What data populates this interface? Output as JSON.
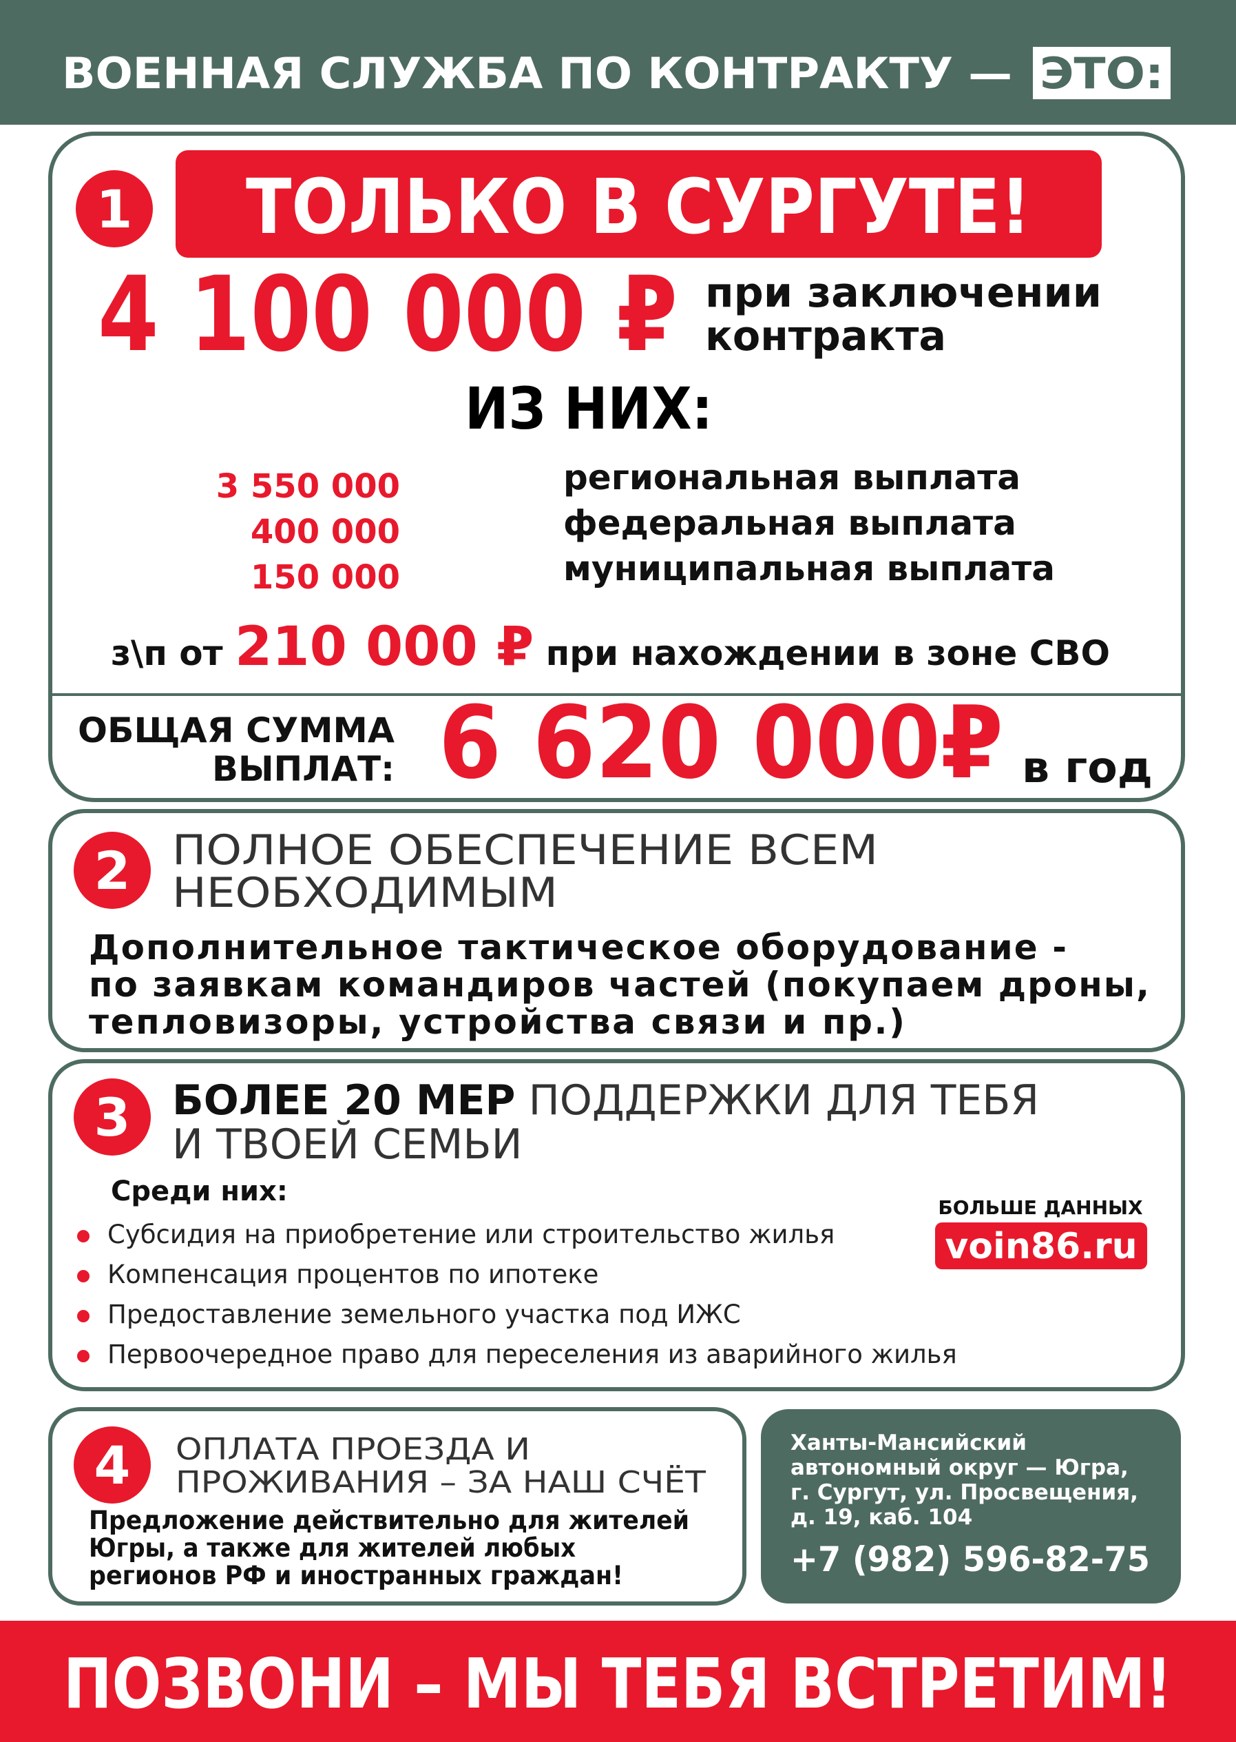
{
  "header": {
    "title": "ВОЕННАЯ СЛУЖБА ПО КОНТРАКТУ —",
    "highlight": "ЭТО:"
  },
  "section_1": {
    "number": "1",
    "banner": "ТОЛЬКО В СУРГУТЕ!",
    "amount": "4 100 000 ₽",
    "amount_caption": [
      "при заключении",
      "контракта"
    ],
    "breakdown_title": "ИЗ НИХ:",
    "breakdown": [
      {
        "amount": "3 550 000",
        "label": "региональная выплата"
      },
      {
        "amount": "400 000",
        "label": "федеральная выплата"
      },
      {
        "amount": "150 000",
        "label": "муниципальная выплата"
      }
    ],
    "salary": {
      "prefix": "з\\п от",
      "amount": "210 000 ₽",
      "suffix": "при нахождении в зоне СВО"
    },
    "total": {
      "label": [
        "ОБЩАЯ СУММА",
        "ВЫПЛАТ:"
      ],
      "amount": "6 620 000₽",
      "period": "в год"
    }
  },
  "section_2": {
    "number": "2",
    "heading": [
      "ПОЛНОЕ ОБЕСПЕЧЕНИЕ ВСЕМ",
      "НЕОБХОДИМЫМ"
    ],
    "body": [
      "Дополнительное тактическое оборудование -",
      "по заявкам командиров частей (покупаем дроны,",
      "тепловизоры, устройства связи и пр.)"
    ]
  },
  "section_3": {
    "number": "3",
    "heading_bold": "БОЛЕЕ 20 МЕР",
    "heading": [
      " ПОДДЕРЖКИ ДЛЯ ТЕБЯ",
      "И ТВОЕЙ СЕМЬИ"
    ],
    "list_title": "Среди них:",
    "items": [
      "Субсидия на приобретение или строительство жилья",
      "Компенсация процентов по ипотеке",
      "Предоставление земельного участка под ИЖС",
      "Первоочередное право для переселения из аварийного жилья"
    ],
    "more_label": "БОЛЬШЕ ДАННЫХ",
    "website": "voin86.ru"
  },
  "section_4": {
    "number": "4",
    "heading": [
      "ОПЛАТА ПРОЕЗДА И",
      "ПРОЖИВАНИЯ – ЗА НАШ СЧЁТ"
    ],
    "body": [
      "Предложение действительно для жителей",
      "Югры, а также для жителей любых",
      "регионов РФ и иностранных граждан!"
    ]
  },
  "contact": {
    "address": [
      "Ханты-Мансийский",
      "автономный округ — Югра,",
      "г. Сургут, ул. Просвещения,",
      "д. 19, каб. 104"
    ],
    "phone": "+7 (982) 596-82-75"
  },
  "footer": {
    "slogan": "ПОЗВОНИ – МЫ ТЕБЯ ВСТРЕТИМ!"
  }
}
